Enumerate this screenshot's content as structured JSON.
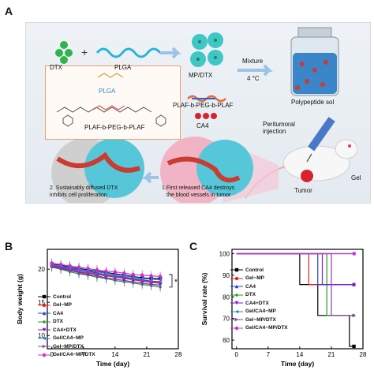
{
  "panel_labels": {
    "a": "A",
    "b": "B",
    "c": "C"
  },
  "schematic": {
    "dtx": "DTX",
    "plga": "PLGA",
    "mp_dtx": "MP/DTX",
    "mixture": "Mixture",
    "temp": "4 °C",
    "plaf": "PLAF-b-PEG-b-PLAF",
    "ca4": "CA4",
    "sol": "Polypeptide sol",
    "struct_plga": "PLGA",
    "struct_plaf": "PLAF-b-PEG-b-PLAF",
    "peritumoral": "Peritumoral\ninjection",
    "gel": "Gel",
    "tumor": "Tumor",
    "step2_line1": "2. Sustainably diffused DTX",
    "step2_line2": "inhibits cell proliferation",
    "step1_line1": "1.First released CA4 destroys",
    "step1_line2": "the blood vessels in tumor"
  },
  "legend_items": [
    {
      "name": "Control",
      "color": "#000000",
      "marker": "square"
    },
    {
      "name": "Gel−MP",
      "color": "#e8231f",
      "marker": "circle"
    },
    {
      "name": "CA4",
      "color": "#1f3fd1",
      "marker": "triangle"
    },
    {
      "name": "DTX",
      "color": "#1f9c2a",
      "marker": "diamond"
    },
    {
      "name": "CA4+DTX",
      "color": "#7a1fd1",
      "marker": "triangle-down"
    },
    {
      "name": "Gel/CA4−MP",
      "color": "#2a7fd0",
      "marker": "triangle-left"
    },
    {
      "name": "Gel−MP/DTX",
      "color": "#8a3fb8",
      "marker": "triangle-right"
    },
    {
      "name": "Gel/CA4−MP/DTX",
      "color": "#d02ad0",
      "marker": "hexagon"
    }
  ],
  "chart_data": [
    {
      "type": "line",
      "xlabel": "Time (day)",
      "ylabel": "Body weight (g)",
      "xlim": [
        -1,
        28
      ],
      "ylim": [
        8,
        23
      ],
      "xticks": [
        0,
        7,
        14,
        21,
        28
      ],
      "yticks": [
        10,
        15,
        20
      ],
      "annotation": "*",
      "x": [
        0,
        2,
        4,
        6,
        8,
        10,
        12,
        14,
        16,
        18,
        20,
        22,
        24
      ],
      "series": [
        {
          "name": "Control",
          "color": "#000000",
          "values": [
            20.8,
            20.6,
            20.3,
            20.1,
            19.9,
            19.7,
            19.5,
            19.3,
            19.1,
            18.9,
            18.7,
            18.6,
            18.6
          ]
        },
        {
          "name": "Gel−MP",
          "color": "#e8231f",
          "values": [
            20.5,
            20.2,
            19.9,
            19.6,
            19.4,
            19.2,
            19.0,
            18.8,
            18.6,
            18.4,
            18.2,
            18.0,
            17.9
          ]
        },
        {
          "name": "CA4",
          "color": "#1f3fd1",
          "values": [
            20.6,
            20.4,
            20.1,
            19.9,
            19.7,
            19.4,
            19.2,
            19.0,
            18.8,
            18.6,
            18.4,
            18.2,
            18.1
          ]
        },
        {
          "name": "DTX",
          "color": "#1f9c2a",
          "values": [
            20.3,
            20.0,
            19.6,
            19.3,
            19.1,
            18.8,
            18.6,
            18.3,
            18.1,
            17.9,
            17.7,
            17.5,
            17.3
          ]
        },
        {
          "name": "CA4+DTX",
          "color": "#7a1fd1",
          "values": [
            20.4,
            20.1,
            19.8,
            19.5,
            19.2,
            19.0,
            18.7,
            18.5,
            18.3,
            18.1,
            17.9,
            17.7,
            17.6
          ]
        },
        {
          "name": "Gel/CA4−MP",
          "color": "#2a7fd0",
          "values": [
            20.7,
            20.5,
            20.2,
            20.0,
            19.8,
            19.6,
            19.4,
            19.2,
            19.0,
            18.8,
            18.6,
            18.5,
            18.4
          ]
        },
        {
          "name": "Gel−MP/DTX",
          "color": "#8a3fb8",
          "values": [
            20.6,
            20.3,
            20.0,
            19.7,
            19.5,
            19.3,
            19.1,
            18.9,
            18.7,
            18.5,
            18.3,
            18.1,
            18.0
          ]
        },
        {
          "name": "Gel/CA4−MP/DTX",
          "color": "#d02ad0",
          "values": [
            20.9,
            20.7,
            20.5,
            20.3,
            20.1,
            19.9,
            19.7,
            19.6,
            19.4,
            19.2,
            19.1,
            19.0,
            18.9
          ]
        }
      ]
    },
    {
      "type": "line",
      "step": true,
      "xlabel": "Time (day)",
      "ylabel": "Survival rate (%)",
      "xlim": [
        -1,
        28
      ],
      "ylim": [
        56,
        102
      ],
      "xticks": [
        0,
        7,
        14,
        21,
        28
      ],
      "yticks": [
        60,
        70,
        80,
        90,
        100
      ],
      "series": [
        {
          "name": "Control",
          "color": "#000000",
          "points": [
            [
              0,
              100
            ],
            [
              14,
              100
            ],
            [
              14,
              85.7
            ],
            [
              18,
              85.7
            ],
            [
              18,
              71.4
            ],
            [
              25,
              71.4
            ],
            [
              25,
              57.1
            ],
            [
              26,
              57.1
            ]
          ]
        },
        {
          "name": "Gel−MP",
          "color": "#e8231f",
          "points": [
            [
              0,
              100
            ],
            [
              16,
              100
            ],
            [
              16,
              85.7
            ],
            [
              26,
              85.7
            ]
          ]
        },
        {
          "name": "CA4",
          "color": "#1f3fd1",
          "points": [
            [
              0,
              100
            ],
            [
              18,
              100
            ],
            [
              18,
              85.7
            ],
            [
              26,
              85.7
            ]
          ]
        },
        {
          "name": "DTX",
          "color": "#1f9c2a",
          "points": [
            [
              0,
              100
            ],
            [
              20,
              100
            ],
            [
              20,
              71.4
            ],
            [
              26,
              71.4
            ]
          ]
        },
        {
          "name": "CA4+DTX",
          "color": "#7a1fd1",
          "points": [
            [
              0,
              100
            ],
            [
              19,
              100
            ],
            [
              19,
              85.7
            ],
            [
              26,
              85.7
            ]
          ]
        },
        {
          "name": "Gel/CA4−MP",
          "color": "#2a7fd0",
          "points": [
            [
              0,
              100
            ],
            [
              26,
              100
            ]
          ]
        },
        {
          "name": "Gel−MP/DTX",
          "color": "#8a3fb8",
          "points": [
            [
              0,
              100
            ],
            [
              21,
              100
            ],
            [
              21,
              71.4
            ],
            [
              26,
              71.4
            ]
          ]
        },
        {
          "name": "Gel/CA4−MP/DTX",
          "color": "#d02ad0",
          "points": [
            [
              0,
              100
            ],
            [
              26,
              100
            ]
          ]
        }
      ]
    }
  ]
}
